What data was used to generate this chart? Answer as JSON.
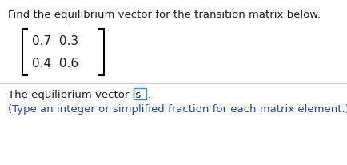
{
  "title_text": "Find the equilibrium vector for the transition matrix below.",
  "matrix_row1": "0.7  0.3",
  "matrix_row2": "0.4  0.6",
  "bottom_text1": "The equilibrium vector is",
  "bottom_text2": "(Type an integer or simplified fraction for each matrix element.)",
  "bg_color": "#ffffff",
  "text_color": "#1a1a1a",
  "blue_color": "#2244aa",
  "divider_color": "#cccccc",
  "bracket_color": "#000000",
  "box_border_color": "#3399cc",
  "font_size_title": 9.5,
  "font_size_matrix": 11,
  "font_size_bottom": 9.5,
  "fig_width": 4.34,
  "fig_height": 2.07,
  "dpi": 100
}
